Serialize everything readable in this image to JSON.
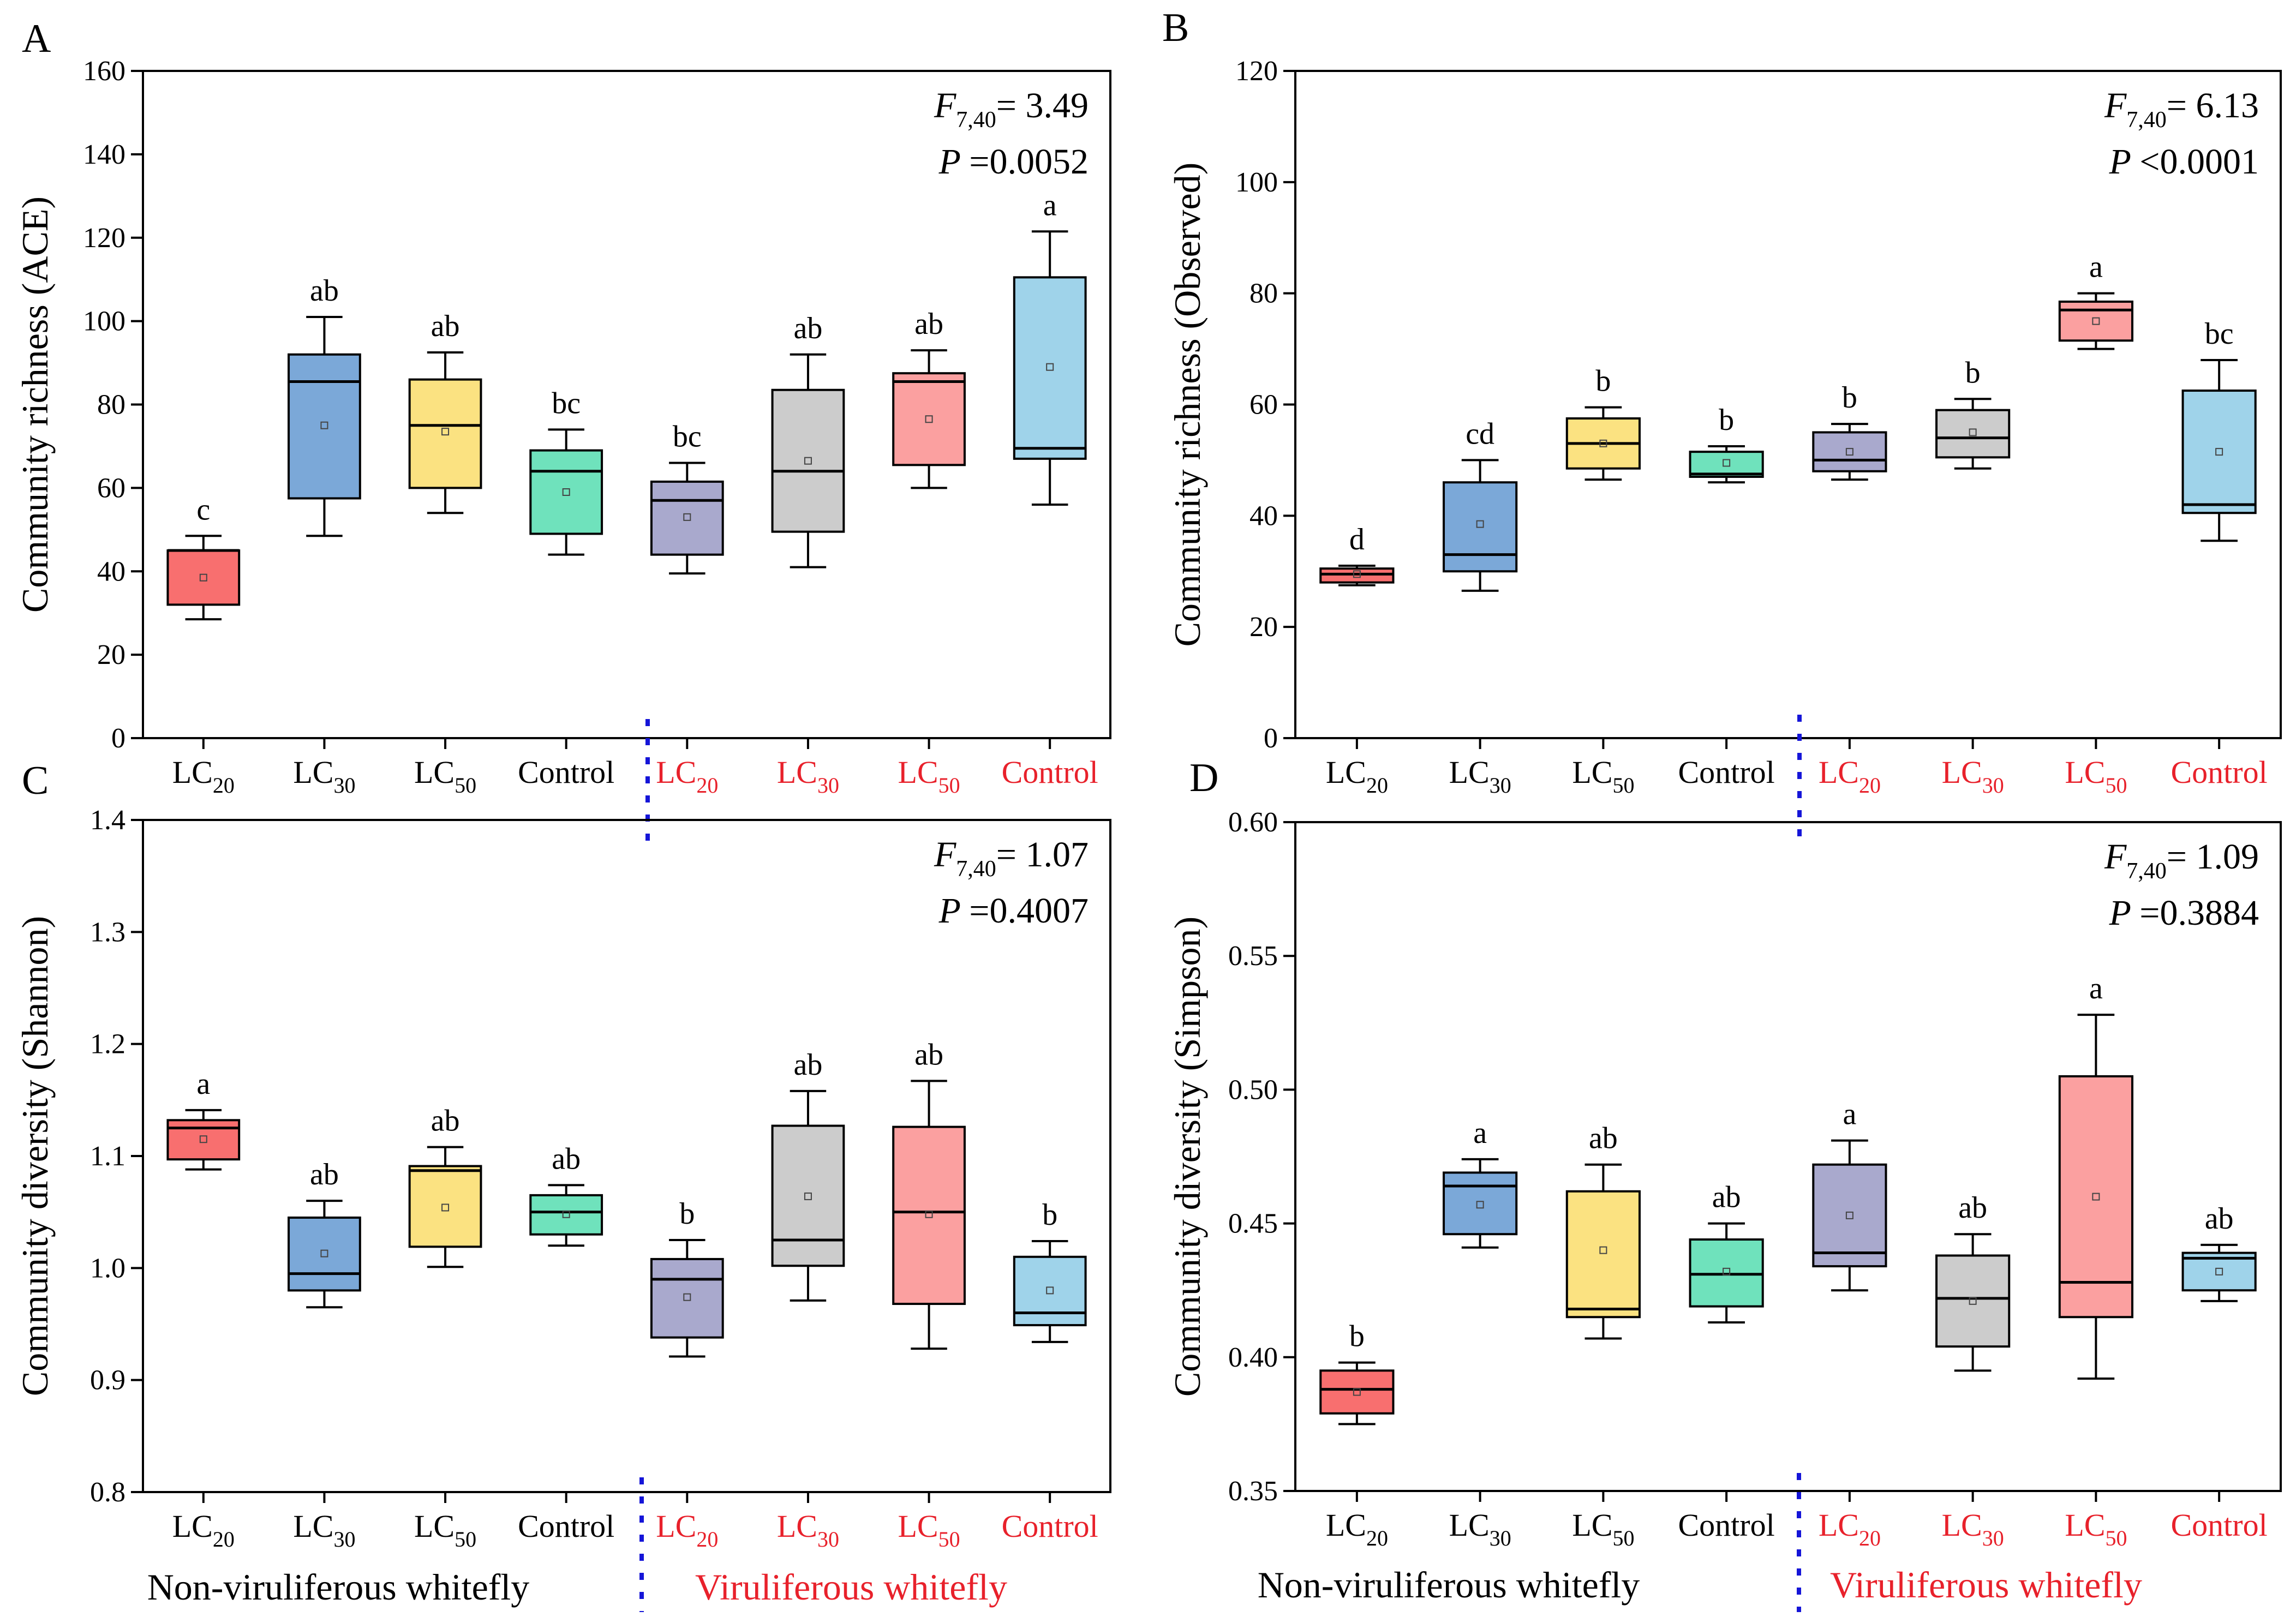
{
  "groups": {
    "left": "Non-viruliferous whitefly",
    "right": "Viruliferous whitefly"
  },
  "colors": {
    "LC20": "#f86f6f",
    "LC30": "#7ba8d8",
    "LC50": "#fbe281",
    "ControlNV": "#6fe2bc",
    "LC20V": "#a9a9cd",
    "LC30V": "#cccccc",
    "LC50V": "#fba0a0",
    "ControlV": "#9fd3ea",
    "red_text": "#e8212b",
    "divider": "#1515d8"
  },
  "chart_data": [
    {
      "panel": "A",
      "type": "box",
      "ylabel": "Community richness (ACE)",
      "ylim": [
        0,
        160
      ],
      "yticks": [
        0,
        20,
        40,
        60,
        80,
        100,
        120,
        140,
        160
      ],
      "stat_f": "= 3.49",
      "stat_p": "=0.0052",
      "categories": [
        {
          "base": "LC",
          "sub": "20",
          "group": "non-viruliferous",
          "color": "LC20",
          "whisk_lo": 28.5,
          "q1": 32,
          "median": 45,
          "q3": 45,
          "whisk_hi": 48.5,
          "mean": 38.5,
          "letter": "c"
        },
        {
          "base": "LC",
          "sub": "30",
          "group": "non-viruliferous",
          "color": "LC30",
          "whisk_lo": 48.5,
          "q1": 57.5,
          "median": 85.5,
          "q3": 92,
          "whisk_hi": 101,
          "mean": 75,
          "letter": "ab"
        },
        {
          "base": "LC",
          "sub": "50",
          "group": "non-viruliferous",
          "color": "LC50",
          "whisk_lo": 54,
          "q1": 60,
          "median": 75,
          "q3": 86,
          "whisk_hi": 92.5,
          "mean": 73.5,
          "letter": "ab"
        },
        {
          "base": "Control",
          "sub": "",
          "group": "non-viruliferous",
          "color": "ControlNV",
          "whisk_lo": 44,
          "q1": 49,
          "median": 64,
          "q3": 69,
          "whisk_hi": 74,
          "mean": 59,
          "letter": "bc"
        },
        {
          "base": "LC",
          "sub": "20",
          "group": "viruliferous",
          "color": "LC20V",
          "whisk_lo": 39.5,
          "q1": 44,
          "median": 57,
          "q3": 61.5,
          "whisk_hi": 66,
          "mean": 53,
          "letter": "bc"
        },
        {
          "base": "LC",
          "sub": "30",
          "group": "viruliferous",
          "color": "LC30V",
          "whisk_lo": 41,
          "q1": 49.5,
          "median": 64,
          "q3": 83.5,
          "whisk_hi": 92,
          "mean": 66.5,
          "letter": "ab"
        },
        {
          "base": "LC",
          "sub": "50",
          "group": "viruliferous",
          "color": "LC50V",
          "whisk_lo": 60,
          "q1": 65.5,
          "median": 85.5,
          "q3": 87.5,
          "whisk_hi": 93,
          "mean": 76.5,
          "letter": "ab"
        },
        {
          "base": "Control",
          "sub": "",
          "group": "viruliferous",
          "color": "ControlV",
          "whisk_lo": 56,
          "q1": 67,
          "median": 69.5,
          "q3": 110.5,
          "whisk_hi": 121.5,
          "mean": 89,
          "letter": "a"
        }
      ]
    },
    {
      "panel": "B",
      "type": "box",
      "ylabel": "Community richness (Observed)",
      "ylim": [
        0,
        120
      ],
      "yticks": [
        0,
        20,
        40,
        60,
        80,
        100,
        120
      ],
      "stat_f": "= 6.13",
      "stat_p": "<0.0001",
      "categories": [
        {
          "base": "LC",
          "sub": "20",
          "group": "non-viruliferous",
          "color": "LC20",
          "whisk_lo": 27.5,
          "q1": 28,
          "median": 29.5,
          "q3": 30.5,
          "whisk_hi": 31,
          "mean": 29.5,
          "letter": "d"
        },
        {
          "base": "LC",
          "sub": "30",
          "group": "non-viruliferous",
          "color": "LC30",
          "whisk_lo": 26.5,
          "q1": 30,
          "median": 33,
          "q3": 46,
          "whisk_hi": 50,
          "mean": 38.5,
          "letter": "cd"
        },
        {
          "base": "LC",
          "sub": "50",
          "group": "non-viruliferous",
          "color": "LC50",
          "whisk_lo": 46.5,
          "q1": 48.5,
          "median": 53,
          "q3": 57.5,
          "whisk_hi": 59.5,
          "mean": 53,
          "letter": "b"
        },
        {
          "base": "Control",
          "sub": "",
          "group": "non-viruliferous",
          "color": "ControlNV",
          "whisk_lo": 46,
          "q1": 47,
          "median": 47.5,
          "q3": 51.5,
          "whisk_hi": 52.5,
          "mean": 49.5,
          "letter": "b"
        },
        {
          "base": "LC",
          "sub": "20",
          "group": "viruliferous",
          "color": "LC20V",
          "whisk_lo": 46.5,
          "q1": 48,
          "median": 50,
          "q3": 55,
          "whisk_hi": 56.5,
          "mean": 51.5,
          "letter": "b"
        },
        {
          "base": "LC",
          "sub": "30",
          "group": "viruliferous",
          "color": "LC30V",
          "whisk_lo": 48.5,
          "q1": 50.5,
          "median": 54,
          "q3": 59,
          "whisk_hi": 61,
          "mean": 55,
          "letter": "b"
        },
        {
          "base": "LC",
          "sub": "50",
          "group": "viruliferous",
          "color": "LC50V",
          "whisk_lo": 70,
          "q1": 71.5,
          "median": 77,
          "q3": 78.5,
          "whisk_hi": 80,
          "mean": 75,
          "letter": "a"
        },
        {
          "base": "Control",
          "sub": "",
          "group": "viruliferous",
          "color": "ControlV",
          "whisk_lo": 35.5,
          "q1": 40.5,
          "median": 42,
          "q3": 62.5,
          "whisk_hi": 68,
          "mean": 51.5,
          "letter": "bc"
        }
      ]
    },
    {
      "panel": "C",
      "type": "box",
      "ylabel": "Community diversity (Shannon)",
      "ylim": [
        0.8,
        1.4
      ],
      "yticks": [
        0.8,
        0.9,
        1.0,
        1.1,
        1.2,
        1.3,
        1.4
      ],
      "decimals": 1,
      "stat_f": "= 1.07",
      "stat_p": "=0.4007",
      "categories": [
        {
          "base": "LC",
          "sub": "20",
          "group": "non-viruliferous",
          "color": "LC20",
          "whisk_lo": 1.088,
          "q1": 1.097,
          "median": 1.125,
          "q3": 1.132,
          "whisk_hi": 1.141,
          "mean": 1.115,
          "letter": "a"
        },
        {
          "base": "LC",
          "sub": "30",
          "group": "non-viruliferous",
          "color": "LC30",
          "whisk_lo": 0.965,
          "q1": 0.98,
          "median": 0.995,
          "q3": 1.045,
          "whisk_hi": 1.06,
          "mean": 1.013,
          "letter": "ab"
        },
        {
          "base": "LC",
          "sub": "50",
          "group": "non-viruliferous",
          "color": "LC50",
          "whisk_lo": 1.001,
          "q1": 1.019,
          "median": 1.087,
          "q3": 1.091,
          "whisk_hi": 1.108,
          "mean": 1.054,
          "letter": "ab"
        },
        {
          "base": "Control",
          "sub": "",
          "group": "non-viruliferous",
          "color": "ControlNV",
          "whisk_lo": 1.02,
          "q1": 1.03,
          "median": 1.05,
          "q3": 1.065,
          "whisk_hi": 1.074,
          "mean": 1.048,
          "letter": "ab"
        },
        {
          "base": "LC",
          "sub": "20",
          "group": "viruliferous",
          "color": "LC20V",
          "whisk_lo": 0.921,
          "q1": 0.938,
          "median": 0.99,
          "q3": 1.008,
          "whisk_hi": 1.025,
          "mean": 0.974,
          "letter": "b"
        },
        {
          "base": "LC",
          "sub": "30",
          "group": "viruliferous",
          "color": "LC30V",
          "whisk_lo": 0.971,
          "q1": 1.002,
          "median": 1.025,
          "q3": 1.127,
          "whisk_hi": 1.158,
          "mean": 1.064,
          "letter": "ab"
        },
        {
          "base": "LC",
          "sub": "50",
          "group": "viruliferous",
          "color": "LC50V",
          "whisk_lo": 0.928,
          "q1": 0.968,
          "median": 1.05,
          "q3": 1.126,
          "whisk_hi": 1.167,
          "mean": 1.048,
          "letter": "ab"
        },
        {
          "base": "Control",
          "sub": "",
          "group": "viruliferous",
          "color": "ControlV",
          "whisk_lo": 0.934,
          "q1": 0.949,
          "median": 0.96,
          "q3": 1.01,
          "whisk_hi": 1.024,
          "mean": 0.98,
          "letter": "b"
        }
      ]
    },
    {
      "panel": "D",
      "type": "box",
      "ylabel": "Community diversity (Simpson)",
      "ylim": [
        0.35,
        0.6
      ],
      "yticks": [
        0.35,
        0.4,
        0.45,
        0.5,
        0.55,
        0.6
      ],
      "decimals": 2,
      "stat_f": "= 1.09",
      "stat_p": "=0.3884",
      "categories": [
        {
          "base": "LC",
          "sub": "20",
          "group": "non-viruliferous",
          "color": "LC20",
          "whisk_lo": 0.375,
          "q1": 0.379,
          "median": 0.388,
          "q3": 0.395,
          "whisk_hi": 0.398,
          "mean": 0.387,
          "letter": "b"
        },
        {
          "base": "LC",
          "sub": "30",
          "group": "non-viruliferous",
          "color": "LC30",
          "whisk_lo": 0.441,
          "q1": 0.446,
          "median": 0.464,
          "q3": 0.469,
          "whisk_hi": 0.474,
          "mean": 0.457,
          "letter": "a"
        },
        {
          "base": "LC",
          "sub": "50",
          "group": "non-viruliferous",
          "color": "LC50",
          "whisk_lo": 0.407,
          "q1": 0.415,
          "median": 0.418,
          "q3": 0.462,
          "whisk_hi": 0.472,
          "mean": 0.44,
          "letter": "ab"
        },
        {
          "base": "Control",
          "sub": "",
          "group": "non-viruliferous",
          "color": "ControlNV",
          "whisk_lo": 0.413,
          "q1": 0.419,
          "median": 0.431,
          "q3": 0.444,
          "whisk_hi": 0.45,
          "mean": 0.432,
          "letter": "ab"
        },
        {
          "base": "LC",
          "sub": "20",
          "group": "viruliferous",
          "color": "LC20V",
          "whisk_lo": 0.425,
          "q1": 0.434,
          "median": 0.439,
          "q3": 0.472,
          "whisk_hi": 0.481,
          "mean": 0.453,
          "letter": "a"
        },
        {
          "base": "LC",
          "sub": "30",
          "group": "viruliferous",
          "color": "LC30V",
          "whisk_lo": 0.395,
          "q1": 0.404,
          "median": 0.422,
          "q3": 0.438,
          "whisk_hi": 0.446,
          "mean": 0.421,
          "letter": "ab"
        },
        {
          "base": "LC",
          "sub": "50",
          "group": "viruliferous",
          "color": "LC50V",
          "whisk_lo": 0.392,
          "q1": 0.415,
          "median": 0.428,
          "q3": 0.505,
          "whisk_hi": 0.528,
          "mean": 0.46,
          "letter": "a"
        },
        {
          "base": "Control",
          "sub": "",
          "group": "viruliferous",
          "color": "ControlV",
          "whisk_lo": 0.421,
          "q1": 0.425,
          "median": 0.437,
          "q3": 0.439,
          "whisk_hi": 0.442,
          "mean": 0.432,
          "letter": "ab"
        }
      ]
    }
  ]
}
